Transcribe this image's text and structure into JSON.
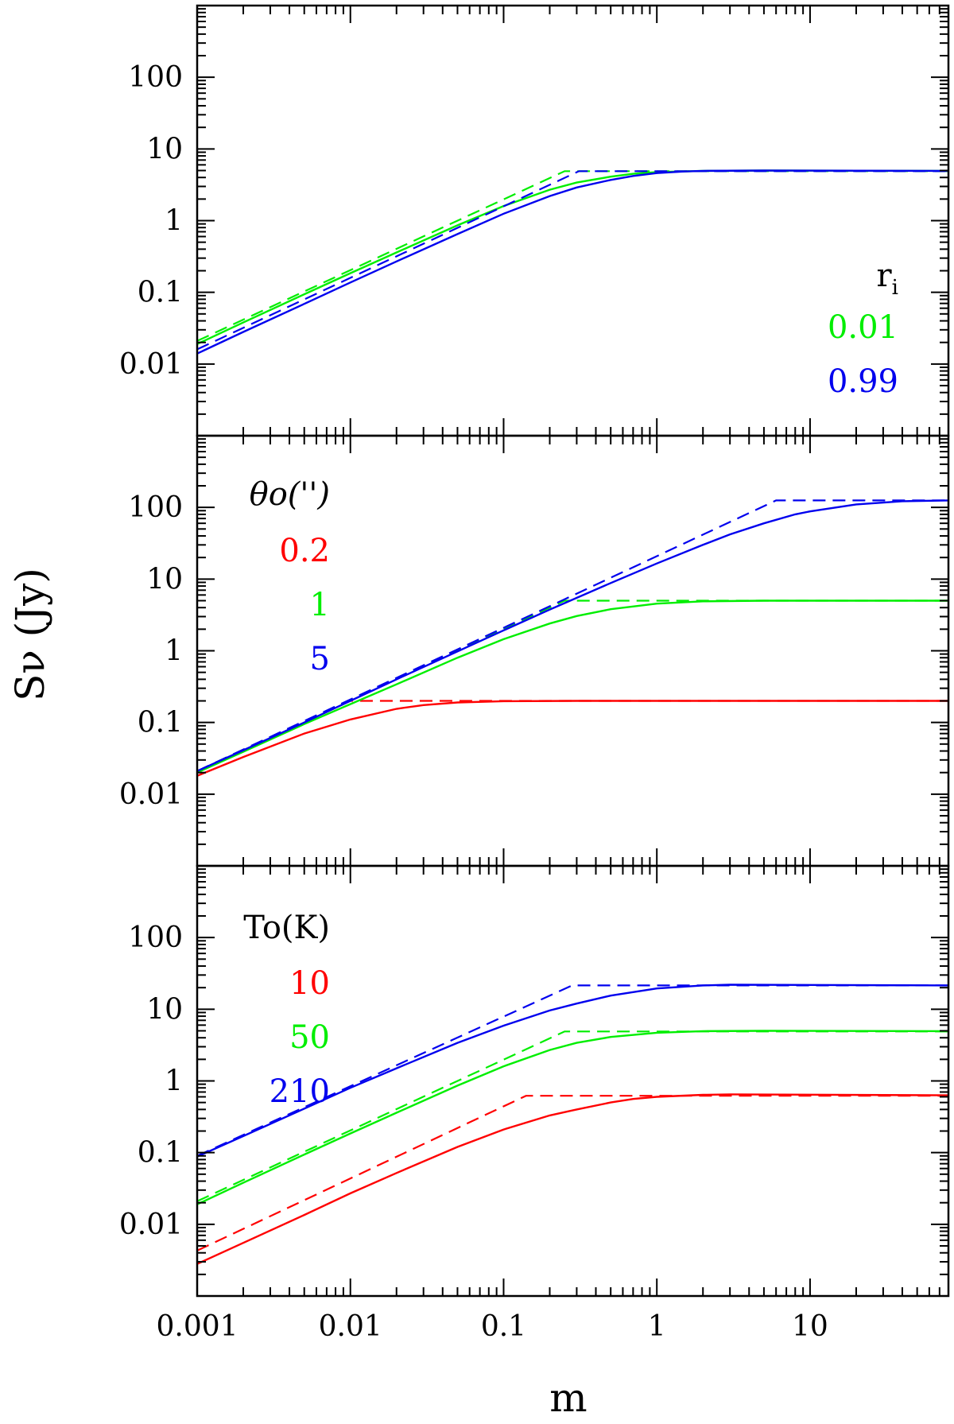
{
  "colors": {
    "red": "#ff0000",
    "green": "#00ee00",
    "blue": "#0000ee",
    "axis": "#000000"
  },
  "chart_data": {
    "type": "line",
    "xlabel": "m",
    "ylabel": "Sν (Jy)",
    "xscale": "log",
    "yscale": "log",
    "xlim": [
      0.001,
      80
    ],
    "ylim": [
      0.001,
      1000
    ],
    "x_tick_labels": [
      "0.001",
      "0.01",
      "0.1",
      "1",
      "10"
    ],
    "y_tick_labels": [
      "0.01",
      "0.1",
      "1",
      "10",
      "100"
    ],
    "panels": [
      {
        "legend_title": "r",
        "legend_title_sub": "i",
        "legend_placement": "right",
        "series": [
          {
            "name": "0.01",
            "color": "green",
            "solid": [
              [
                0.001,
                0.019
              ],
              [
                0.002,
                0.038
              ],
              [
                0.005,
                0.094
              ],
              [
                0.01,
                0.185
              ],
              [
                0.02,
                0.36
              ],
              [
                0.05,
                0.86
              ],
              [
                0.1,
                1.6
              ],
              [
                0.2,
                2.7
              ],
              [
                0.3,
                3.4
              ],
              [
                0.5,
                4.1
              ],
              [
                0.7,
                4.5
              ],
              [
                1,
                4.75
              ],
              [
                2,
                4.95
              ],
              [
                5,
                5.0
              ],
              [
                80,
                4.95
              ]
            ],
            "dashed": [
              [
                0.001,
                0.021
              ],
              [
                0.25,
                4.9
              ],
              [
                80,
                4.9
              ]
            ]
          },
          {
            "name": "0.99",
            "color": "blue",
            "solid": [
              [
                0.001,
                0.014
              ],
              [
                0.002,
                0.028
              ],
              [
                0.005,
                0.069
              ],
              [
                0.01,
                0.137
              ],
              [
                0.02,
                0.27
              ],
              [
                0.05,
                0.65
              ],
              [
                0.1,
                1.25
              ],
              [
                0.2,
                2.2
              ],
              [
                0.3,
                2.9
              ],
              [
                0.5,
                3.7
              ],
              [
                0.7,
                4.2
              ],
              [
                1,
                4.6
              ],
              [
                1.5,
                4.85
              ],
              [
                2,
                4.95
              ],
              [
                5,
                5.0
              ],
              [
                80,
                4.95
              ]
            ],
            "dashed": [
              [
                0.001,
                0.016
              ],
              [
                0.31,
                4.9
              ],
              [
                80,
                4.9
              ]
            ]
          }
        ]
      },
      {
        "legend_title": "θo('')",
        "legend_placement": "left",
        "series": [
          {
            "name": "0.2",
            "color": "red",
            "solid": [
              [
                0.001,
                0.018
              ],
              [
                0.002,
                0.033
              ],
              [
                0.005,
                0.07
              ],
              [
                0.01,
                0.11
              ],
              [
                0.02,
                0.155
              ],
              [
                0.03,
                0.175
              ],
              [
                0.05,
                0.19
              ],
              [
                0.1,
                0.198
              ],
              [
                0.3,
                0.2
              ],
              [
                80,
                0.2
              ]
            ],
            "dashed": [
              [
                0.001,
                0.02
              ],
              [
                0.01,
                0.2
              ],
              [
                80,
                0.2
              ]
            ]
          },
          {
            "name": "1",
            "color": "green",
            "solid": [
              [
                0.001,
                0.02
              ],
              [
                0.002,
                0.039
              ],
              [
                0.005,
                0.095
              ],
              [
                0.01,
                0.18
              ],
              [
                0.02,
                0.34
              ],
              [
                0.05,
                0.8
              ],
              [
                0.1,
                1.45
              ],
              [
                0.2,
                2.4
              ],
              [
                0.3,
                3.05
              ],
              [
                0.5,
                3.8
              ],
              [
                1,
                4.55
              ],
              [
                2,
                4.9
              ],
              [
                5,
                5.0
              ],
              [
                80,
                5.0
              ]
            ],
            "dashed": [
              [
                0.001,
                0.021
              ],
              [
                0.25,
                5.0
              ],
              [
                80,
                5.0
              ]
            ]
          },
          {
            "name": "5",
            "color": "blue",
            "solid": [
              [
                0.001,
                0.021
              ],
              [
                0.002,
                0.041
              ],
              [
                0.005,
                0.1
              ],
              [
                0.01,
                0.2
              ],
              [
                0.02,
                0.4
              ],
              [
                0.05,
                0.98
              ],
              [
                0.1,
                1.93
              ],
              [
                0.2,
                3.75
              ],
              [
                0.5,
                8.8
              ],
              [
                1,
                16.5
              ],
              [
                2,
                30
              ],
              [
                3,
                42
              ],
              [
                5,
                60
              ],
              [
                8,
                80
              ],
              [
                10,
                88
              ],
              [
                20,
                110
              ],
              [
                40,
                122
              ],
              [
                80,
                125
              ]
            ],
            "dashed": [
              [
                0.001,
                0.021
              ],
              [
                6,
                125
              ],
              [
                80,
                125
              ]
            ]
          }
        ]
      },
      {
        "legend_title": "To(K)",
        "legend_placement": "left",
        "series": [
          {
            "name": "10",
            "color": "red",
            "solid": [
              [
                0.001,
                0.0028
              ],
              [
                0.002,
                0.0055
              ],
              [
                0.005,
                0.0135
              ],
              [
                0.01,
                0.027
              ],
              [
                0.02,
                0.052
              ],
              [
                0.05,
                0.12
              ],
              [
                0.1,
                0.21
              ],
              [
                0.2,
                0.33
              ],
              [
                0.3,
                0.4
              ],
              [
                0.5,
                0.5
              ],
              [
                0.7,
                0.56
              ],
              [
                1,
                0.6
              ],
              [
                2,
                0.64
              ],
              [
                3,
                0.65
              ],
              [
                80,
                0.63
              ]
            ],
            "dashed": [
              [
                0.001,
                0.0043
              ],
              [
                0.14,
                0.62
              ],
              [
                80,
                0.62
              ]
            ]
          },
          {
            "name": "50",
            "color": "green",
            "solid": [
              [
                0.001,
                0.019
              ],
              [
                0.002,
                0.038
              ],
              [
                0.005,
                0.094
              ],
              [
                0.01,
                0.185
              ],
              [
                0.02,
                0.36
              ],
              [
                0.05,
                0.86
              ],
              [
                0.1,
                1.6
              ],
              [
                0.2,
                2.7
              ],
              [
                0.3,
                3.4
              ],
              [
                0.5,
                4.1
              ],
              [
                1,
                4.7
              ],
              [
                2,
                4.95
              ],
              [
                5,
                5.0
              ],
              [
                80,
                4.95
              ]
            ],
            "dashed": [
              [
                0.001,
                0.021
              ],
              [
                0.25,
                4.9
              ],
              [
                80,
                4.9
              ]
            ]
          },
          {
            "name": "210",
            "color": "blue",
            "solid": [
              [
                0.001,
                0.088
              ],
              [
                0.002,
                0.17
              ],
              [
                0.005,
                0.41
              ],
              [
                0.01,
                0.8
              ],
              [
                0.02,
                1.5
              ],
              [
                0.05,
                3.4
              ],
              [
                0.1,
                5.9
              ],
              [
                0.2,
                9.6
              ],
              [
                0.3,
                12
              ],
              [
                0.5,
                15.5
              ],
              [
                1,
                19.5
              ],
              [
                2,
                21.5
              ],
              [
                3,
                22
              ],
              [
                80,
                21.5
              ]
            ],
            "dashed": [
              [
                0.001,
                0.09
              ],
              [
                0.28,
                21.5
              ],
              [
                80,
                21.5
              ]
            ]
          }
        ]
      }
    ]
  }
}
